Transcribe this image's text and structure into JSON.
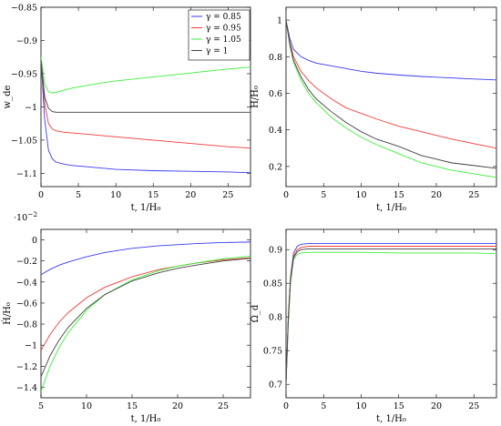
{
  "colors": {
    "gamma_0_85": "#3a3af0",
    "gamma_0_95": "#f03a3a",
    "gamma_1_05": "#3af03a",
    "gamma_1": "#404040"
  },
  "legend": {
    "placement": "top-right of first panel",
    "entries": [
      "γ = 0.85",
      "γ = 0.95",
      "γ = 1.05",
      "γ = 1"
    ]
  },
  "chart_data": [
    {
      "type": "line",
      "xlabel": "t, 1/H₀",
      "ylabel": "w_de",
      "xlim": [
        0,
        28
      ],
      "ylim": [
        -1.12,
        -0.85
      ],
      "xticks": [
        0,
        5,
        10,
        15,
        20,
        25
      ],
      "yticks": [
        -1.1,
        -1.05,
        -1,
        -0.95,
        -0.9,
        -0.85
      ],
      "ytick_labels": [
        "−1.1",
        "−1.05",
        "−1",
        "−0.95",
        "−0.9",
        "−0.85"
      ],
      "x": [
        0,
        0.5,
        1,
        1.5,
        2,
        3,
        4,
        6,
        8,
        10,
        15,
        20,
        25,
        28
      ],
      "series": [
        {
          "name": "γ = 0.85",
          "color": "#3a3af0",
          "values": [
            -0.93,
            -1.02,
            -1.065,
            -1.078,
            -1.083,
            -1.086,
            -1.088,
            -1.09,
            -1.092,
            -1.094,
            -1.096,
            -1.097,
            -1.098,
            -1.099
          ]
        },
        {
          "name": "γ = 0.95",
          "color": "#f03a3a",
          "values": [
            -0.93,
            -0.995,
            -1.025,
            -1.033,
            -1.036,
            -1.038,
            -1.039,
            -1.041,
            -1.043,
            -1.045,
            -1.05,
            -1.055,
            -1.06,
            -1.062
          ]
        },
        {
          "name": "γ = 1.05",
          "color": "#3af03a",
          "values": [
            -0.925,
            -0.965,
            -0.977,
            -0.979,
            -0.978,
            -0.975,
            -0.972,
            -0.968,
            -0.964,
            -0.961,
            -0.955,
            -0.949,
            -0.943,
            -0.94
          ]
        },
        {
          "name": "γ = 1",
          "color": "#404040",
          "values": [
            -0.93,
            -0.985,
            -1.002,
            -1.007,
            -1.008,
            -1.008,
            -1.008,
            -1.008,
            -1.008,
            -1.008,
            -1.008,
            -1.008,
            -1.008,
            -1.008
          ]
        }
      ]
    },
    {
      "type": "line",
      "xlabel": "t, 1/H₀",
      "ylabel": "H/H₀",
      "xlim": [
        0,
        28
      ],
      "ylim": [
        0.09,
        1.07
      ],
      "xticks": [
        0,
        5,
        10,
        15,
        20,
        25
      ],
      "yticks": [
        0.2,
        0.4,
        0.6,
        0.8,
        1
      ],
      "ytick_labels": [
        "0.2",
        "0.4",
        "0.6",
        "0.8",
        "1"
      ],
      "x": [
        0,
        0.5,
        1,
        2,
        3,
        4,
        6,
        8,
        10,
        12,
        15,
        18,
        20,
        22,
        25,
        28
      ],
      "series": [
        {
          "name": "γ = 0.85",
          "color": "#3a3af0",
          "values": [
            1.0,
            0.9,
            0.84,
            0.8,
            0.78,
            0.765,
            0.75,
            0.735,
            0.72,
            0.71,
            0.7,
            0.692,
            0.688,
            0.684,
            0.678,
            0.673
          ]
        },
        {
          "name": "γ = 0.95",
          "color": "#f03a3a",
          "values": [
            1.0,
            0.88,
            0.8,
            0.72,
            0.67,
            0.63,
            0.57,
            0.52,
            0.49,
            0.46,
            0.42,
            0.39,
            0.37,
            0.35,
            0.325,
            0.3
          ]
        },
        {
          "name": "γ = 1.05",
          "color": "#3af03a",
          "values": [
            1.0,
            0.86,
            0.77,
            0.67,
            0.6,
            0.55,
            0.47,
            0.41,
            0.36,
            0.32,
            0.27,
            0.22,
            0.2,
            0.18,
            0.16,
            0.14
          ]
        },
        {
          "name": "γ = 1",
          "color": "#404040",
          "values": [
            1.0,
            0.87,
            0.78,
            0.69,
            0.62,
            0.57,
            0.5,
            0.44,
            0.39,
            0.35,
            0.31,
            0.26,
            0.24,
            0.22,
            0.205,
            0.19
          ]
        }
      ]
    },
    {
      "type": "line",
      "xlabel": "t, 1/H₀",
      "ylabel": "Ḣ/H₀",
      "multiplier": "·10",
      "multiplier_exp": "−2",
      "xlim": [
        5,
        28
      ],
      "ylim": [
        -1.5,
        0.1
      ],
      "xticks": [
        5,
        10,
        15,
        20,
        25
      ],
      "yticks": [
        -1.4,
        -1.2,
        -1,
        -0.8,
        -0.6,
        -0.4,
        -0.2,
        0
      ],
      "ytick_labels": [
        "−1.4",
        "−1.2",
        "−1",
        "−0.8",
        "−0.6",
        "−0.4",
        "−0.2",
        "0"
      ],
      "x": [
        5,
        6,
        7,
        8,
        10,
        12,
        15,
        18,
        20,
        22,
        25,
        28
      ],
      "series": [
        {
          "name": "γ = 0.85",
          "color": "#3a3af0",
          "values": [
            -0.33,
            -0.28,
            -0.24,
            -0.21,
            -0.16,
            -0.12,
            -0.08,
            -0.055,
            -0.045,
            -0.035,
            -0.025,
            -0.02
          ]
        },
        {
          "name": "γ = 0.95",
          "color": "#f03a3a",
          "values": [
            -1.05,
            -0.9,
            -0.78,
            -0.69,
            -0.55,
            -0.45,
            -0.35,
            -0.28,
            -0.25,
            -0.22,
            -0.19,
            -0.17
          ]
        },
        {
          "name": "γ = 1.05",
          "color": "#3af03a",
          "values": [
            -1.44,
            -1.2,
            -1.02,
            -0.88,
            -0.67,
            -0.52,
            -0.38,
            -0.29,
            -0.25,
            -0.22,
            -0.18,
            -0.155
          ]
        },
        {
          "name": "γ = 1",
          "color": "#404040",
          "values": [
            -1.3,
            -1.1,
            -0.95,
            -0.83,
            -0.65,
            -0.52,
            -0.39,
            -0.31,
            -0.27,
            -0.24,
            -0.2,
            -0.175
          ]
        }
      ]
    },
    {
      "type": "line",
      "xlabel": "t, 1/H₀",
      "ylabel": "Ω_d",
      "xlim": [
        0,
        28
      ],
      "ylim": [
        0.68,
        0.93
      ],
      "xticks": [
        0,
        5,
        10,
        15,
        20,
        25
      ],
      "yticks": [
        0.7,
        0.75,
        0.8,
        0.85,
        0.9
      ],
      "ytick_labels": [
        "0.7",
        "0.75",
        "0.8",
        "0.85",
        "0.9"
      ],
      "x": [
        0,
        0.3,
        0.6,
        1,
        1.5,
        2,
        3,
        4,
        6,
        10,
        15,
        20,
        25,
        28
      ],
      "series": [
        {
          "name": "γ = 0.85",
          "color": "#3a3af0",
          "values": [
            0.7,
            0.8,
            0.86,
            0.895,
            0.905,
            0.908,
            0.909,
            0.909,
            0.909,
            0.909,
            0.909,
            0.909,
            0.909,
            0.909
          ]
        },
        {
          "name": "γ = 0.95",
          "color": "#f03a3a",
          "values": [
            0.7,
            0.8,
            0.858,
            0.89,
            0.9,
            0.903,
            0.905,
            0.905,
            0.905,
            0.905,
            0.905,
            0.905,
            0.905,
            0.905
          ]
        },
        {
          "name": "γ = 1.05",
          "color": "#3af03a",
          "values": [
            0.7,
            0.79,
            0.85,
            0.885,
            0.893,
            0.895,
            0.896,
            0.896,
            0.896,
            0.896,
            0.895,
            0.895,
            0.895,
            0.894
          ]
        },
        {
          "name": "γ = 1",
          "color": "#404040",
          "values": [
            0.7,
            0.795,
            0.855,
            0.888,
            0.897,
            0.9,
            0.901,
            0.901,
            0.901,
            0.901,
            0.901,
            0.901,
            0.901,
            0.901
          ]
        }
      ]
    }
  ]
}
